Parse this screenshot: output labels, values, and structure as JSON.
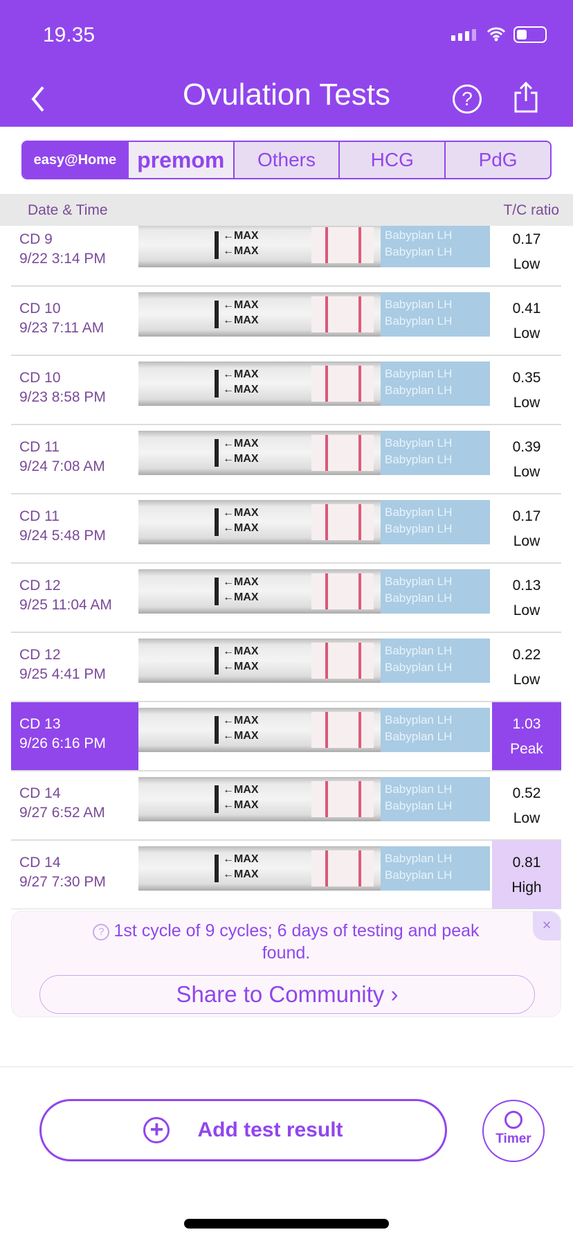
{
  "status": {
    "time": "19.35"
  },
  "header": {
    "title": "Ovulation Tests",
    "back_icon": "chevron-left-icon",
    "help_icon": "question-circle-icon",
    "share_icon": "share-icon"
  },
  "brand_tabs": [
    {
      "label": "easy@Home",
      "active": true
    },
    {
      "label": "premom"
    },
    {
      "label": "Others"
    },
    {
      "label": "HCG"
    },
    {
      "label": "PdG"
    }
  ],
  "table": {
    "col_date": "Date & Time",
    "col_ratio": "T/C ratio",
    "strip_text": {
      "max": "←MAX",
      "brand": "Babyplan LH"
    },
    "rows": [
      {
        "cd": "CD 9",
        "datetime": "9/22 3:14 PM",
        "ratio": "0.17",
        "level": "Low"
      },
      {
        "cd": "CD 10",
        "datetime": "9/23 7:11 AM",
        "ratio": "0.41",
        "level": "Low"
      },
      {
        "cd": "CD 10",
        "datetime": "9/23 8:58 PM",
        "ratio": "0.35",
        "level": "Low"
      },
      {
        "cd": "CD 11",
        "datetime": "9/24 7:08 AM",
        "ratio": "0.39",
        "level": "Low"
      },
      {
        "cd": "CD 11",
        "datetime": "9/24 5:48 PM",
        "ratio": "0.17",
        "level": "Low"
      },
      {
        "cd": "CD 12",
        "datetime": "9/25 11:04 AM",
        "ratio": "0.13",
        "level": "Low"
      },
      {
        "cd": "CD 12",
        "datetime": "9/25 4:41 PM",
        "ratio": "0.22",
        "level": "Low"
      },
      {
        "cd": "CD 13",
        "datetime": "9/26 6:16 PM",
        "ratio": "1.03",
        "level": "Peak"
      },
      {
        "cd": "CD 14",
        "datetime": "9/27 6:52 AM",
        "ratio": "0.52",
        "level": "Low"
      },
      {
        "cd": "CD 14",
        "datetime": "9/27 7:30 PM",
        "ratio": "0.81",
        "level": "High"
      }
    ]
  },
  "banner": {
    "message": "1st cycle of 9 cycles; 6 days of testing and peak found.",
    "share_label": "Share to Community ›",
    "close": "×"
  },
  "actions": {
    "add_label": "Add test result",
    "timer_label": "Timer"
  },
  "colors": {
    "accent": "#9146ec",
    "peak": "#9146ec",
    "high": "#e3cff7"
  }
}
